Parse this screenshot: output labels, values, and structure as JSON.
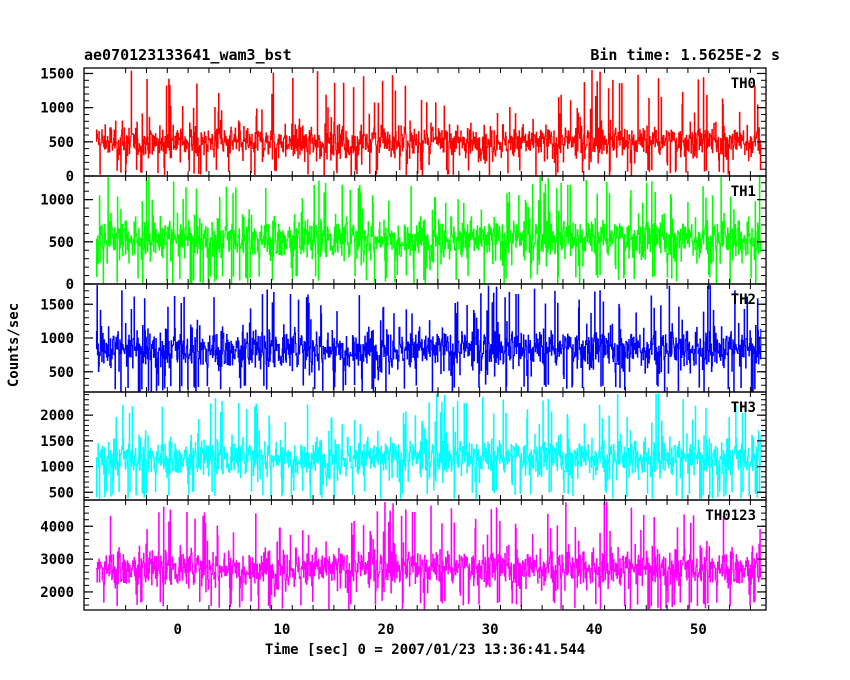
{
  "header": {
    "title": "ae070123133641_wam3_bst",
    "bin_time": "Bin time: 1.5625E-2 s"
  },
  "chart_data": {
    "type": "line",
    "xlabel": "Time [sec] 0 = 2007/01/23 13:36:41.544",
    "ylabel": "Counts/sec",
    "xlim": [
      -9,
      56.5
    ],
    "x_ticks": [
      0,
      10,
      20,
      30,
      40,
      50
    ],
    "x_tick_labels": [
      "0",
      "10",
      "20",
      "30",
      "40",
      "50"
    ],
    "data_x_range": [
      -7.8,
      56.0
    ],
    "grid": false,
    "panels": [
      {
        "name": "TH0",
        "color": "#ff0000",
        "ylim": [
          0,
          1580
        ],
        "y_ticks": [
          0,
          500,
          1000,
          1500
        ],
        "y_tick_labels": [
          "0",
          "500",
          "1000",
          "1500"
        ],
        "typical_range": [
          100,
          900
        ],
        "min_value": 0,
        "max_value": 1560
      },
      {
        "name": "TH1",
        "color": "#00ff00",
        "ylim": [
          0,
          1280
        ],
        "y_ticks": [
          0,
          500,
          1000
        ],
        "y_tick_labels": [
          "0",
          "500",
          "1000"
        ],
        "typical_range": [
          120,
          950
        ],
        "min_value": 0,
        "max_value": 1270
      },
      {
        "name": "TH2",
        "color": "#0000ff",
        "ylim": [
          200,
          1800
        ],
        "y_ticks": [
          500,
          1000,
          1500
        ],
        "y_tick_labels": [
          "500",
          "1000",
          "1500"
        ],
        "typical_range": [
          320,
          1350
        ],
        "min_value": 200,
        "max_value": 1780
      },
      {
        "name": "TH3",
        "color": "#00ffff",
        "ylim": [
          350,
          2450
        ],
        "y_ticks": [
          500,
          1000,
          1500,
          2000
        ],
        "y_tick_labels": [
          "500",
          "1000",
          "1500",
          "2000"
        ],
        "typical_range": [
          550,
          1800
        ],
        "min_value": 380,
        "max_value": 2420
      },
      {
        "name": "TH0123",
        "color": "#ff00ff",
        "ylim": [
          1450,
          4800
        ],
        "y_ticks": [
          2000,
          3000,
          4000
        ],
        "y_tick_labels": [
          "2000",
          "3000",
          "4000"
        ],
        "typical_range": [
          1750,
          3700
        ],
        "min_value": 1480,
        "max_value": 4750
      }
    ]
  }
}
